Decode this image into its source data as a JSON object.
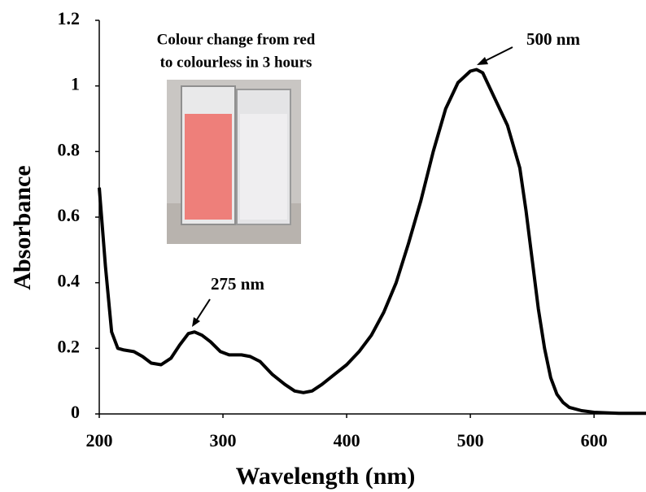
{
  "chart_data": {
    "type": "line",
    "x_label": "Wavelength (nm)",
    "y_label": "Absorbance",
    "annotations": [
      "275 nm",
      "500 nm",
      "Colour change from red",
      "to colourless in 3 hours"
    ],
    "color": "#000000",
    "x": [
      200,
      205,
      210,
      215,
      220,
      228,
      235,
      242,
      250,
      258,
      265,
      272,
      277,
      283,
      290,
      298,
      305,
      315,
      322,
      330,
      340,
      350,
      358,
      365,
      372,
      380,
      390,
      400,
      410,
      420,
      430,
      440,
      450,
      460,
      470,
      480,
      490,
      500,
      505,
      510,
      520,
      530,
      540,
      545,
      550,
      555,
      560,
      565,
      570,
      575,
      580,
      590,
      600,
      620,
      642
    ],
    "values": [
      0.69,
      0.45,
      0.25,
      0.2,
      0.195,
      0.19,
      0.175,
      0.155,
      0.15,
      0.17,
      0.21,
      0.245,
      0.25,
      0.24,
      0.22,
      0.19,
      0.18,
      0.18,
      0.175,
      0.16,
      0.12,
      0.09,
      0.07,
      0.065,
      0.07,
      0.09,
      0.12,
      0.15,
      0.19,
      0.24,
      0.31,
      0.4,
      0.52,
      0.65,
      0.8,
      0.93,
      1.01,
      1.045,
      1.05,
      1.04,
      0.96,
      0.88,
      0.75,
      0.62,
      0.47,
      0.32,
      0.2,
      0.11,
      0.06,
      0.035,
      0.02,
      0.01,
      0.005,
      0.002,
      0.002
    ],
    "xlim": [
      200,
      642
    ],
    "xticks": [
      200,
      300,
      400,
      500,
      600
    ],
    "ylim": [
      0,
      1.2
    ],
    "yticks": [
      0,
      0.2,
      0.4,
      0.6,
      0.8,
      1,
      1.2
    ]
  }
}
